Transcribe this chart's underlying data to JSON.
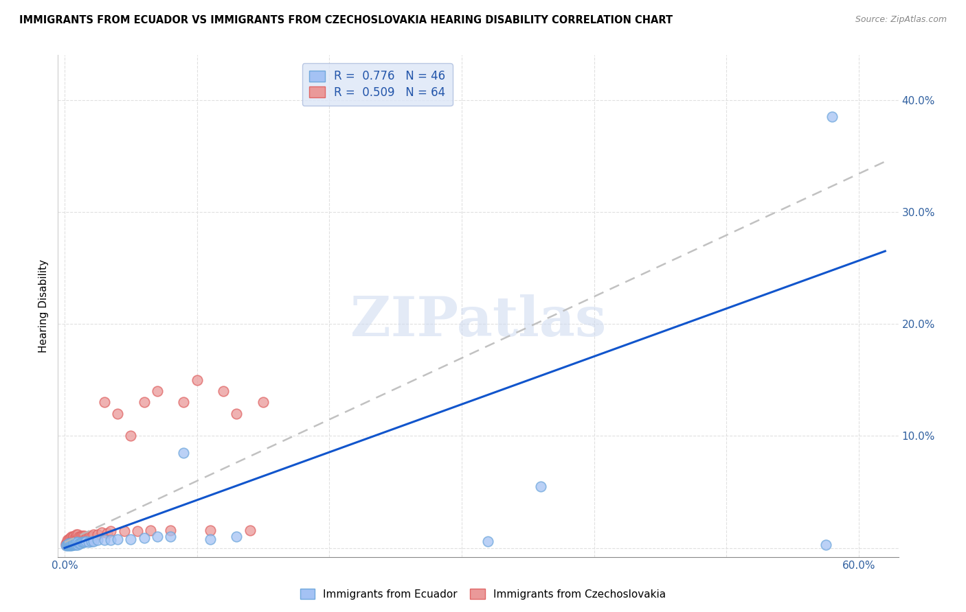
{
  "title": "IMMIGRANTS FROM ECUADOR VS IMMIGRANTS FROM CZECHOSLOVAKIA HEARING DISABILITY CORRELATION CHART",
  "source": "Source: ZipAtlas.com",
  "ylabel_label": "Hearing Disability",
  "xlim": [
    -0.005,
    0.63
  ],
  "ylim": [
    -0.008,
    0.44
  ],
  "ecuador_color": "#a4c2f4",
  "ecuador_edge_color": "#6fa8dc",
  "czechoslovakia_color": "#ea9999",
  "czechoslovakia_edge_color": "#e06666",
  "ecuador_line_color": "#1155cc",
  "czechoslovakia_line_color": "#cccccc",
  "ecuador_R": 0.776,
  "ecuador_N": 46,
  "czechoslovakia_R": 0.509,
  "czechoslovakia_N": 64,
  "watermark_text": "ZIPatlas",
  "ecuador_scatter_x": [
    0.001,
    0.002,
    0.002,
    0.003,
    0.003,
    0.003,
    0.004,
    0.004,
    0.004,
    0.005,
    0.005,
    0.005,
    0.006,
    0.006,
    0.007,
    0.007,
    0.008,
    0.008,
    0.009,
    0.009,
    0.01,
    0.01,
    0.011,
    0.012,
    0.013,
    0.014,
    0.015,
    0.016,
    0.018,
    0.02,
    0.022,
    0.025,
    0.03,
    0.035,
    0.04,
    0.05,
    0.06,
    0.07,
    0.08,
    0.09,
    0.11,
    0.13,
    0.32,
    0.36,
    0.575,
    0.58
  ],
  "ecuador_scatter_y": [
    0.002,
    0.002,
    0.003,
    0.002,
    0.003,
    0.004,
    0.002,
    0.003,
    0.004,
    0.002,
    0.003,
    0.004,
    0.003,
    0.004,
    0.003,
    0.004,
    0.003,
    0.004,
    0.003,
    0.005,
    0.003,
    0.005,
    0.004,
    0.004,
    0.005,
    0.005,
    0.005,
    0.006,
    0.005,
    0.006,
    0.006,
    0.007,
    0.007,
    0.007,
    0.008,
    0.008,
    0.009,
    0.01,
    0.01,
    0.085,
    0.008,
    0.01,
    0.006,
    0.055,
    0.003,
    0.385
  ],
  "czechoslovakia_scatter_x": [
    0.001,
    0.001,
    0.002,
    0.002,
    0.002,
    0.003,
    0.003,
    0.003,
    0.004,
    0.004,
    0.004,
    0.005,
    0.005,
    0.005,
    0.006,
    0.006,
    0.006,
    0.007,
    0.007,
    0.007,
    0.008,
    0.008,
    0.009,
    0.009,
    0.009,
    0.01,
    0.01,
    0.01,
    0.011,
    0.011,
    0.012,
    0.012,
    0.013,
    0.013,
    0.014,
    0.014,
    0.015,
    0.015,
    0.016,
    0.017,
    0.018,
    0.019,
    0.02,
    0.022,
    0.025,
    0.028,
    0.03,
    0.032,
    0.035,
    0.04,
    0.045,
    0.05,
    0.055,
    0.06,
    0.065,
    0.07,
    0.08,
    0.09,
    0.1,
    0.11,
    0.12,
    0.13,
    0.14,
    0.15
  ],
  "czechoslovakia_scatter_y": [
    0.003,
    0.004,
    0.003,
    0.005,
    0.007,
    0.003,
    0.005,
    0.008,
    0.004,
    0.006,
    0.009,
    0.004,
    0.007,
    0.01,
    0.005,
    0.007,
    0.01,
    0.005,
    0.008,
    0.01,
    0.006,
    0.009,
    0.006,
    0.009,
    0.012,
    0.006,
    0.009,
    0.012,
    0.007,
    0.01,
    0.007,
    0.01,
    0.008,
    0.011,
    0.008,
    0.011,
    0.008,
    0.011,
    0.009,
    0.01,
    0.01,
    0.011,
    0.01,
    0.012,
    0.012,
    0.014,
    0.13,
    0.013,
    0.015,
    0.12,
    0.015,
    0.1,
    0.015,
    0.13,
    0.016,
    0.14,
    0.016,
    0.13,
    0.15,
    0.016,
    0.14,
    0.12,
    0.016,
    0.13
  ],
  "ecuador_trend_x": [
    0.0,
    0.62
  ],
  "ecuador_trend_y": [
    0.0,
    0.265
  ],
  "czechoslovakia_trend_x": [
    0.0,
    0.62
  ],
  "czechoslovakia_trend_y": [
    0.005,
    0.345
  ],
  "xtick_positions": [
    0.0,
    0.1,
    0.2,
    0.3,
    0.4,
    0.5,
    0.6
  ],
  "xtick_labels_visible": [
    "0.0%",
    "",
    "",
    "",
    "",
    "",
    "60.0%"
  ],
  "right_ytick_positions": [
    0.1,
    0.2,
    0.3,
    0.4
  ],
  "right_ytick_labels": [
    "10.0%",
    "20.0%",
    "30.0%",
    "40.0%"
  ],
  "grid_color": "#e0e0e0",
  "legend_facecolor": "#dce6f7",
  "legend_edgecolor": "#aabbdd"
}
